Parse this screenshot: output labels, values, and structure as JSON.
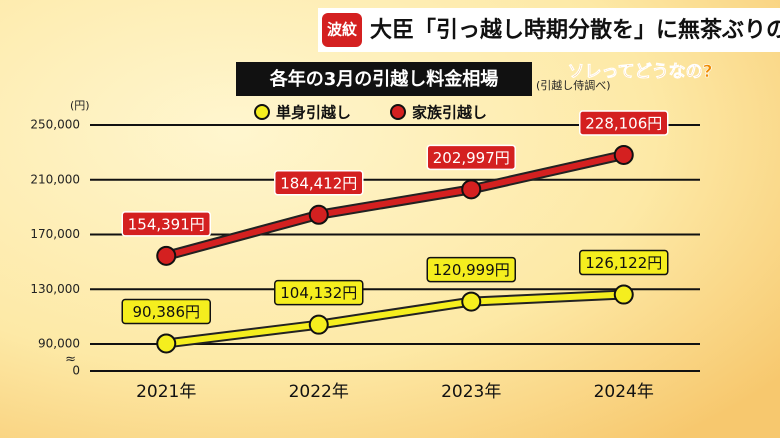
{
  "header": {
    "badge": "波紋",
    "headline": "大臣「引っ越し時期分散を」に無茶ぶりの声",
    "logo": "ソレってどうなの?"
  },
  "chart_data": {
    "type": "line",
    "title": "各年の3月の引越し料金相場",
    "source": "(引越し侍調べ)",
    "y_label": "(円)",
    "categories": [
      "2021年",
      "2022年",
      "2023年",
      "2024年"
    ],
    "series": [
      {
        "name": "単身引越し",
        "color": "#f5ee1e",
        "values": [
          90386,
          104132,
          120999,
          126122
        ],
        "value_labels": [
          "90,386円",
          "104,132円",
          "120,999円",
          "126,122円"
        ]
      },
      {
        "name": "家族引越し",
        "color": "#d42020",
        "values": [
          154391,
          184412,
          202997,
          228106
        ],
        "value_labels": [
          "154,391円",
          "184,412円",
          "202,997円",
          "228,106円"
        ]
      }
    ],
    "ylim": [
      0,
      250000
    ],
    "ybreak": [
      0,
      90000
    ],
    "ybreak_label": "≈",
    "yticks": [
      {
        "value": 0,
        "label": "0"
      },
      {
        "value": 90000,
        "label": "90,000"
      },
      {
        "value": 130000,
        "label": "130,000"
      },
      {
        "value": 170000,
        "label": "170,000"
      },
      {
        "value": 210000,
        "label": "210,000"
      },
      {
        "value": 250000,
        "label": "250,000"
      }
    ],
    "grid": true
  }
}
